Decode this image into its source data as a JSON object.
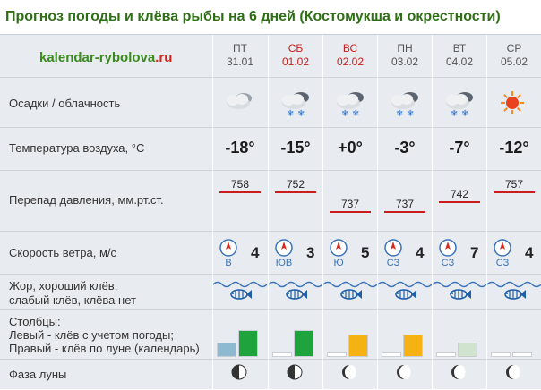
{
  "title": "Прогноз погоды и клёва рыбы на  6 дней (Костомукша и окрестности)",
  "logo": {
    "main": "kalendar-rybolova",
    "tld": ".ru"
  },
  "labels": {
    "precip": "Осадки / облачность",
    "temp": "Температура воздуха, °С",
    "pressure": "Перепад давления, мм.рт.ст.",
    "wind": "Скорость ветра, м/с",
    "bite_line1": "Жор, хороший клёв,",
    "bite_line2": "слабый клёв, клёва нет",
    "cols_line1": "Столбцы:",
    "cols_line2": "Левый - клёв с учетом погоды;",
    "cols_line3": "Правый - клёв по луне (календарь)",
    "moon": "Фаза луны"
  },
  "days": [
    {
      "name": "ПТ",
      "date": "31.01",
      "weekend": false,
      "weather": "cloudy-icon",
      "temp": "-18°",
      "pressure": "758",
      "wind_speed": "4",
      "wind_dir": "В",
      "bite": "fish-icon",
      "bar_left": 0.35,
      "bar_right": 0.65,
      "bar_left_color": "#8fb8d1",
      "bar_right_color": "#1fa33c",
      "moon": "first-quarter"
    },
    {
      "name": "СБ",
      "date": "01.02",
      "weekend": true,
      "weather": "snow-cloud-icon",
      "temp": "-15°",
      "pressure": "752",
      "wind_speed": "3",
      "wind_dir": "ЮВ",
      "bite": "fish-icon",
      "bar_left": 0.1,
      "bar_right": 0.65,
      "bar_left_color": "#ffffff",
      "bar_right_color": "#1fa33c",
      "moon": "first-quarter"
    },
    {
      "name": "ВС",
      "date": "02.02",
      "weekend": true,
      "weather": "snow-cloud-icon",
      "temp": "+0°",
      "pressure": "737",
      "wind_speed": "5",
      "wind_dir": "Ю",
      "bite": "fish-icon",
      "bar_left": 0.1,
      "bar_right": 0.55,
      "bar_left_color": "#ffffff",
      "bar_right_color": "#f6b212",
      "moon": "waxing-gibbous"
    },
    {
      "name": "ПН",
      "date": "03.02",
      "weekend": false,
      "weather": "snow-cloud-icon",
      "temp": "-3°",
      "pressure": "737",
      "wind_speed": "4",
      "wind_dir": "СЗ",
      "bite": "fish-icon",
      "bar_left": 0.1,
      "bar_right": 0.55,
      "bar_left_color": "#ffffff",
      "bar_right_color": "#f6b212",
      "moon": "waxing-gibbous"
    },
    {
      "name": "ВТ",
      "date": "04.02",
      "weekend": false,
      "weather": "snow-cloud-icon",
      "temp": "-7°",
      "pressure": "742",
      "wind_speed": "7",
      "wind_dir": "СЗ",
      "bite": "fish-icon",
      "bar_left": 0.1,
      "bar_right": 0.35,
      "bar_left_color": "#ffffff",
      "bar_right_color": "#cfe3cf",
      "moon": "waxing-gibbous"
    },
    {
      "name": "СР",
      "date": "05.02",
      "weekend": false,
      "weather": "sun-icon",
      "temp": "-12°",
      "pressure": "757",
      "wind_speed": "4",
      "wind_dir": "СЗ",
      "bite": "fish-icon",
      "bar_left": 0.1,
      "bar_right": 0.1,
      "bar_left_color": "#ffffff",
      "bar_right_color": "#ffffff",
      "moon": "waxing-gibbous"
    }
  ],
  "colors": {
    "title": "#2e6f16",
    "weekend": "#c9201c",
    "pressure_line": "#cc1d1d",
    "wind": "#3a73b8"
  }
}
